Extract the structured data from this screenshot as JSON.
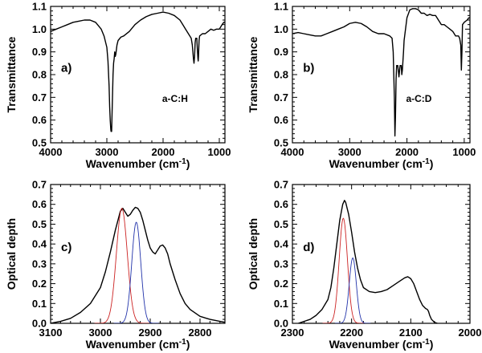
{
  "chart_data": [
    {
      "id": "a",
      "type": "line",
      "panel_label": "a)",
      "annotation": "a-C:H",
      "xlabel": "Wavenumber (cm",
      "xlabel_sup": "-1",
      "xlabel_end": ")",
      "ylabel": "Transmittance",
      "xlim": [
        4000,
        900
      ],
      "ylim": [
        0.5,
        1.1
      ],
      "xticks": [
        4000,
        3000,
        2000,
        1000
      ],
      "xtick_labels": [
        "4000",
        "3000",
        "2000",
        "1000"
      ],
      "yticks": [
        0.5,
        0.6,
        0.7,
        0.8,
        0.9,
        1.0,
        1.1
      ],
      "ytick_labels": [
        "0.5",
        "0.6",
        "0.7",
        "0.8",
        "0.9",
        "1.0",
        "1.1"
      ],
      "series": [
        {
          "name": "spectrum",
          "color": "#000000",
          "x": [
            4000,
            3900,
            3800,
            3700,
            3600,
            3500,
            3400,
            3300,
            3200,
            3100,
            3050,
            3000,
            2980,
            2960,
            2950,
            2940,
            2930,
            2925,
            2920,
            2915,
            2910,
            2900,
            2890,
            2880,
            2870,
            2860,
            2850,
            2840,
            2820,
            2800,
            2750,
            2700,
            2600,
            2500,
            2400,
            2300,
            2200,
            2100,
            2000,
            1900,
            1800,
            1700,
            1650,
            1600,
            1550,
            1500,
            1480,
            1460,
            1450,
            1440,
            1430,
            1420,
            1400,
            1390,
            1380,
            1375,
            1370,
            1360,
            1350,
            1300,
            1250,
            1200,
            1150,
            1100,
            1050,
            1000,
            950,
            920,
            900
          ],
          "y": [
            0.99,
            1.0,
            1.01,
            1.02,
            1.03,
            1.035,
            1.04,
            1.04,
            1.03,
            1.0,
            0.97,
            0.92,
            0.86,
            0.75,
            0.66,
            0.6,
            0.56,
            0.55,
            0.57,
            0.55,
            0.6,
            0.7,
            0.8,
            0.85,
            0.87,
            0.9,
            0.88,
            0.89,
            0.93,
            0.95,
            0.965,
            0.97,
            0.99,
            1.02,
            1.04,
            1.055,
            1.065,
            1.07,
            1.075,
            1.07,
            1.06,
            1.04,
            1.02,
            1.0,
            0.98,
            0.96,
            0.93,
            0.87,
            0.85,
            0.88,
            0.94,
            0.96,
            0.96,
            0.91,
            0.87,
            0.86,
            0.88,
            0.95,
            0.97,
            0.98,
            0.98,
            0.99,
            1.0,
            0.995,
            1.0,
            1.0,
            1.02,
            1.03,
            1.03
          ]
        }
      ]
    },
    {
      "id": "b",
      "type": "line",
      "panel_label": "b)",
      "annotation": "a-C:D",
      "xlabel": "Wavenumber (cm",
      "xlabel_sup": "-1",
      "xlabel_end": ")",
      "ylabel": "Transmittance",
      "xlim": [
        4000,
        900
      ],
      "ylim": [
        0.5,
        1.1
      ],
      "xticks": [
        4000,
        3000,
        2000,
        1000
      ],
      "xtick_labels": [
        "4000",
        "3000",
        "2000",
        "1000"
      ],
      "yticks": [
        0.5,
        0.6,
        0.7,
        0.8,
        0.9,
        1.0,
        1.1
      ],
      "ytick_labels": [
        "0.5",
        "0.6",
        "0.7",
        "0.8",
        "0.9",
        "1.0",
        "1.1"
      ],
      "series": [
        {
          "name": "spectrum",
          "color": "#000000",
          "x": [
            4000,
            3900,
            3800,
            3700,
            3600,
            3500,
            3400,
            3300,
            3200,
            3100,
            3000,
            2900,
            2800,
            2700,
            2600,
            2500,
            2400,
            2300,
            2260,
            2240,
            2220,
            2210,
            2200,
            2190,
            2180,
            2160,
            2140,
            2120,
            2100,
            2090,
            2080,
            2070,
            2060,
            2050,
            2000,
            1950,
            1900,
            1850,
            1800,
            1750,
            1700,
            1650,
            1600,
            1550,
            1500,
            1450,
            1400,
            1350,
            1300,
            1250,
            1200,
            1150,
            1100,
            1080,
            1060,
            1050,
            1040,
            1030,
            1000,
            950,
            920,
            900
          ],
          "y": [
            0.98,
            0.985,
            0.98,
            0.975,
            0.97,
            0.97,
            0.98,
            0.99,
            1.0,
            1.01,
            1.025,
            1.03,
            1.025,
            1.01,
            0.99,
            0.98,
            0.98,
            0.97,
            0.96,
            0.9,
            0.7,
            0.53,
            0.62,
            0.78,
            0.84,
            0.84,
            0.79,
            0.84,
            0.84,
            0.8,
            0.82,
            0.86,
            0.9,
            0.95,
            1.05,
            1.085,
            1.09,
            1.09,
            1.085,
            1.07,
            1.07,
            1.06,
            1.065,
            1.06,
            1.06,
            1.04,
            1.02,
            1.02,
            1.01,
            1.0,
            0.99,
            0.97,
            0.97,
            0.96,
            0.93,
            0.82,
            0.9,
            1.02,
            1.03,
            1.04,
            1.05,
            1.05
          ]
        }
      ]
    },
    {
      "id": "c",
      "type": "line",
      "panel_label": "c)",
      "xlabel": "Wavenumber (cm",
      "xlabel_sup": "-1",
      "xlabel_end": ")",
      "ylabel": "Optical depth",
      "xlim": [
        3100,
        2750
      ],
      "ylim": [
        0.0,
        0.7
      ],
      "xticks": [
        3100,
        3000,
        2900,
        2800
      ],
      "xtick_labels": [
        "3100",
        "3000",
        "2900",
        "2800"
      ],
      "yticks": [
        0.0,
        0.1,
        0.2,
        0.3,
        0.4,
        0.5,
        0.6,
        0.7
      ],
      "ytick_labels": [
        "0.0",
        "0.1",
        "0.2",
        "0.3",
        "0.4",
        "0.5",
        "0.6",
        "0.7"
      ],
      "series": [
        {
          "name": "total",
          "color": "#000000",
          "x": [
            3100,
            3080,
            3060,
            3040,
            3020,
            3000,
            2990,
            2980,
            2970,
            2960,
            2955,
            2950,
            2945,
            2940,
            2935,
            2930,
            2925,
            2920,
            2915,
            2910,
            2905,
            2900,
            2895,
            2890,
            2885,
            2880,
            2875,
            2870,
            2865,
            2860,
            2850,
            2840,
            2830,
            2820,
            2800,
            2780,
            2760,
            2750
          ],
          "y": [
            0.0,
            0.01,
            0.025,
            0.055,
            0.1,
            0.18,
            0.26,
            0.36,
            0.47,
            0.565,
            0.58,
            0.56,
            0.54,
            0.55,
            0.57,
            0.585,
            0.58,
            0.56,
            0.52,
            0.47,
            0.42,
            0.38,
            0.36,
            0.35,
            0.37,
            0.39,
            0.395,
            0.38,
            0.35,
            0.3,
            0.22,
            0.15,
            0.1,
            0.07,
            0.035,
            0.02,
            0.01,
            0.005
          ]
        },
        {
          "name": "Gaussian component 1",
          "color": "#cc2222",
          "gaussian": {
            "center": 2957,
            "amplitude": 0.58,
            "sigma": 11
          }
        },
        {
          "name": "Gaussian component 2",
          "color": "#2233aa",
          "gaussian": {
            "center": 2928,
            "amplitude": 0.51,
            "sigma": 9
          }
        }
      ]
    },
    {
      "id": "d",
      "type": "line",
      "panel_label": "d)",
      "xlabel": "Wavenumber (cm",
      "xlabel_sup": "-1",
      "xlabel_end": ")",
      "ylabel": "Optical depth",
      "xlim": [
        2300,
        2000
      ],
      "ylim": [
        0.0,
        0.7
      ],
      "xticks": [
        2300,
        2200,
        2100,
        2000
      ],
      "xtick_labels": [
        "2300",
        "2200",
        "2100",
        "2000"
      ],
      "yticks": [
        0.0,
        0.1,
        0.2,
        0.3,
        0.4,
        0.5,
        0.6,
        0.7
      ],
      "ytick_labels": [
        "0.0",
        "0.1",
        "0.2",
        "0.3",
        "0.4",
        "0.5",
        "0.6",
        "0.7"
      ],
      "series": [
        {
          "name": "total",
          "color": "#000000",
          "x": [
            2290,
            2280,
            2270,
            2260,
            2250,
            2240,
            2235,
            2230,
            2225,
            2220,
            2215,
            2212,
            2210,
            2205,
            2200,
            2195,
            2190,
            2185,
            2180,
            2170,
            2160,
            2150,
            2140,
            2130,
            2120,
            2110,
            2105,
            2100,
            2095,
            2090,
            2085,
            2080,
            2075,
            2072,
            2070,
            2068,
            2065,
            2060,
            2055
          ],
          "y": [
            0.0,
            0.01,
            0.02,
            0.04,
            0.07,
            0.12,
            0.18,
            0.28,
            0.4,
            0.52,
            0.6,
            0.62,
            0.61,
            0.55,
            0.46,
            0.36,
            0.28,
            0.22,
            0.18,
            0.16,
            0.155,
            0.16,
            0.17,
            0.19,
            0.21,
            0.23,
            0.235,
            0.225,
            0.2,
            0.16,
            0.12,
            0.09,
            0.075,
            0.07,
            0.06,
            0.04,
            0.02,
            0.005,
            0.0
          ]
        },
        {
          "name": "Gaussian component 1",
          "color": "#cc2222",
          "gaussian": {
            "center": 2214,
            "amplitude": 0.53,
            "sigma": 7
          }
        },
        {
          "name": "Gaussian component 2",
          "color": "#2233aa",
          "gaussian": {
            "center": 2198,
            "amplitude": 0.33,
            "sigma": 6
          }
        }
      ]
    }
  ]
}
